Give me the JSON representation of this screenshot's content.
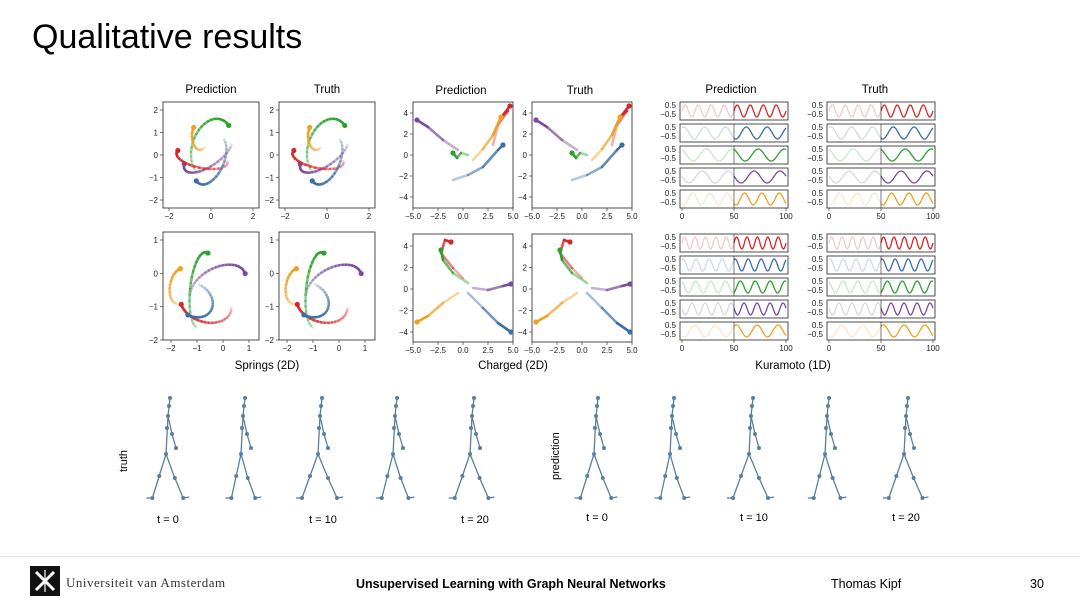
{
  "slide": {
    "title": "Qualitative results",
    "footer": {
      "institution": "Universiteit van Amsterdam",
      "talk_title": "Unsupervised Learning with Graph Neural Networks",
      "author": "Thomas Kipf",
      "page": "30"
    }
  },
  "groups": [
    {
      "label": "Springs (2D)",
      "col_titles": [
        "Prediction",
        "Truth"
      ],
      "x_ticks_top": [
        "−2",
        "0",
        "2"
      ],
      "y_ticks_top": [
        "2",
        "1",
        "0",
        "−1",
        "−2"
      ],
      "x_ticks_bottom": [
        "−2",
        "−1",
        "0",
        "1"
      ],
      "y_ticks_bottom": [
        "1",
        "0",
        "−1",
        "−2"
      ]
    },
    {
      "label": "Charged (2D)",
      "col_titles": [
        "Prediction",
        "Truth"
      ],
      "x_ticks": [
        "−5.0",
        "−2.5",
        "0.0",
        "2.5",
        "5.0"
      ],
      "y_ticks": [
        "4",
        "2",
        "0",
        "−2",
        "−4"
      ]
    },
    {
      "label": "Kuramoto (1D)",
      "col_titles": [
        "Prediction",
        "Truth"
      ],
      "y_ticks": [
        "0.5",
        "−0.5"
      ],
      "x_ticks": [
        "0",
        "50",
        "100"
      ]
    }
  ],
  "walk": {
    "truth_label": "truth",
    "prediction_label": "prediction",
    "time_labels": [
      "t = 0",
      "t = 10",
      "t = 20"
    ]
  },
  "colors": {
    "red": "#d62728",
    "blue": "#3b6ea5",
    "green": "#2ca02c",
    "purple": "#7b4a9c",
    "orange": "#f0a020",
    "skeleton": "#5a7f9e"
  }
}
